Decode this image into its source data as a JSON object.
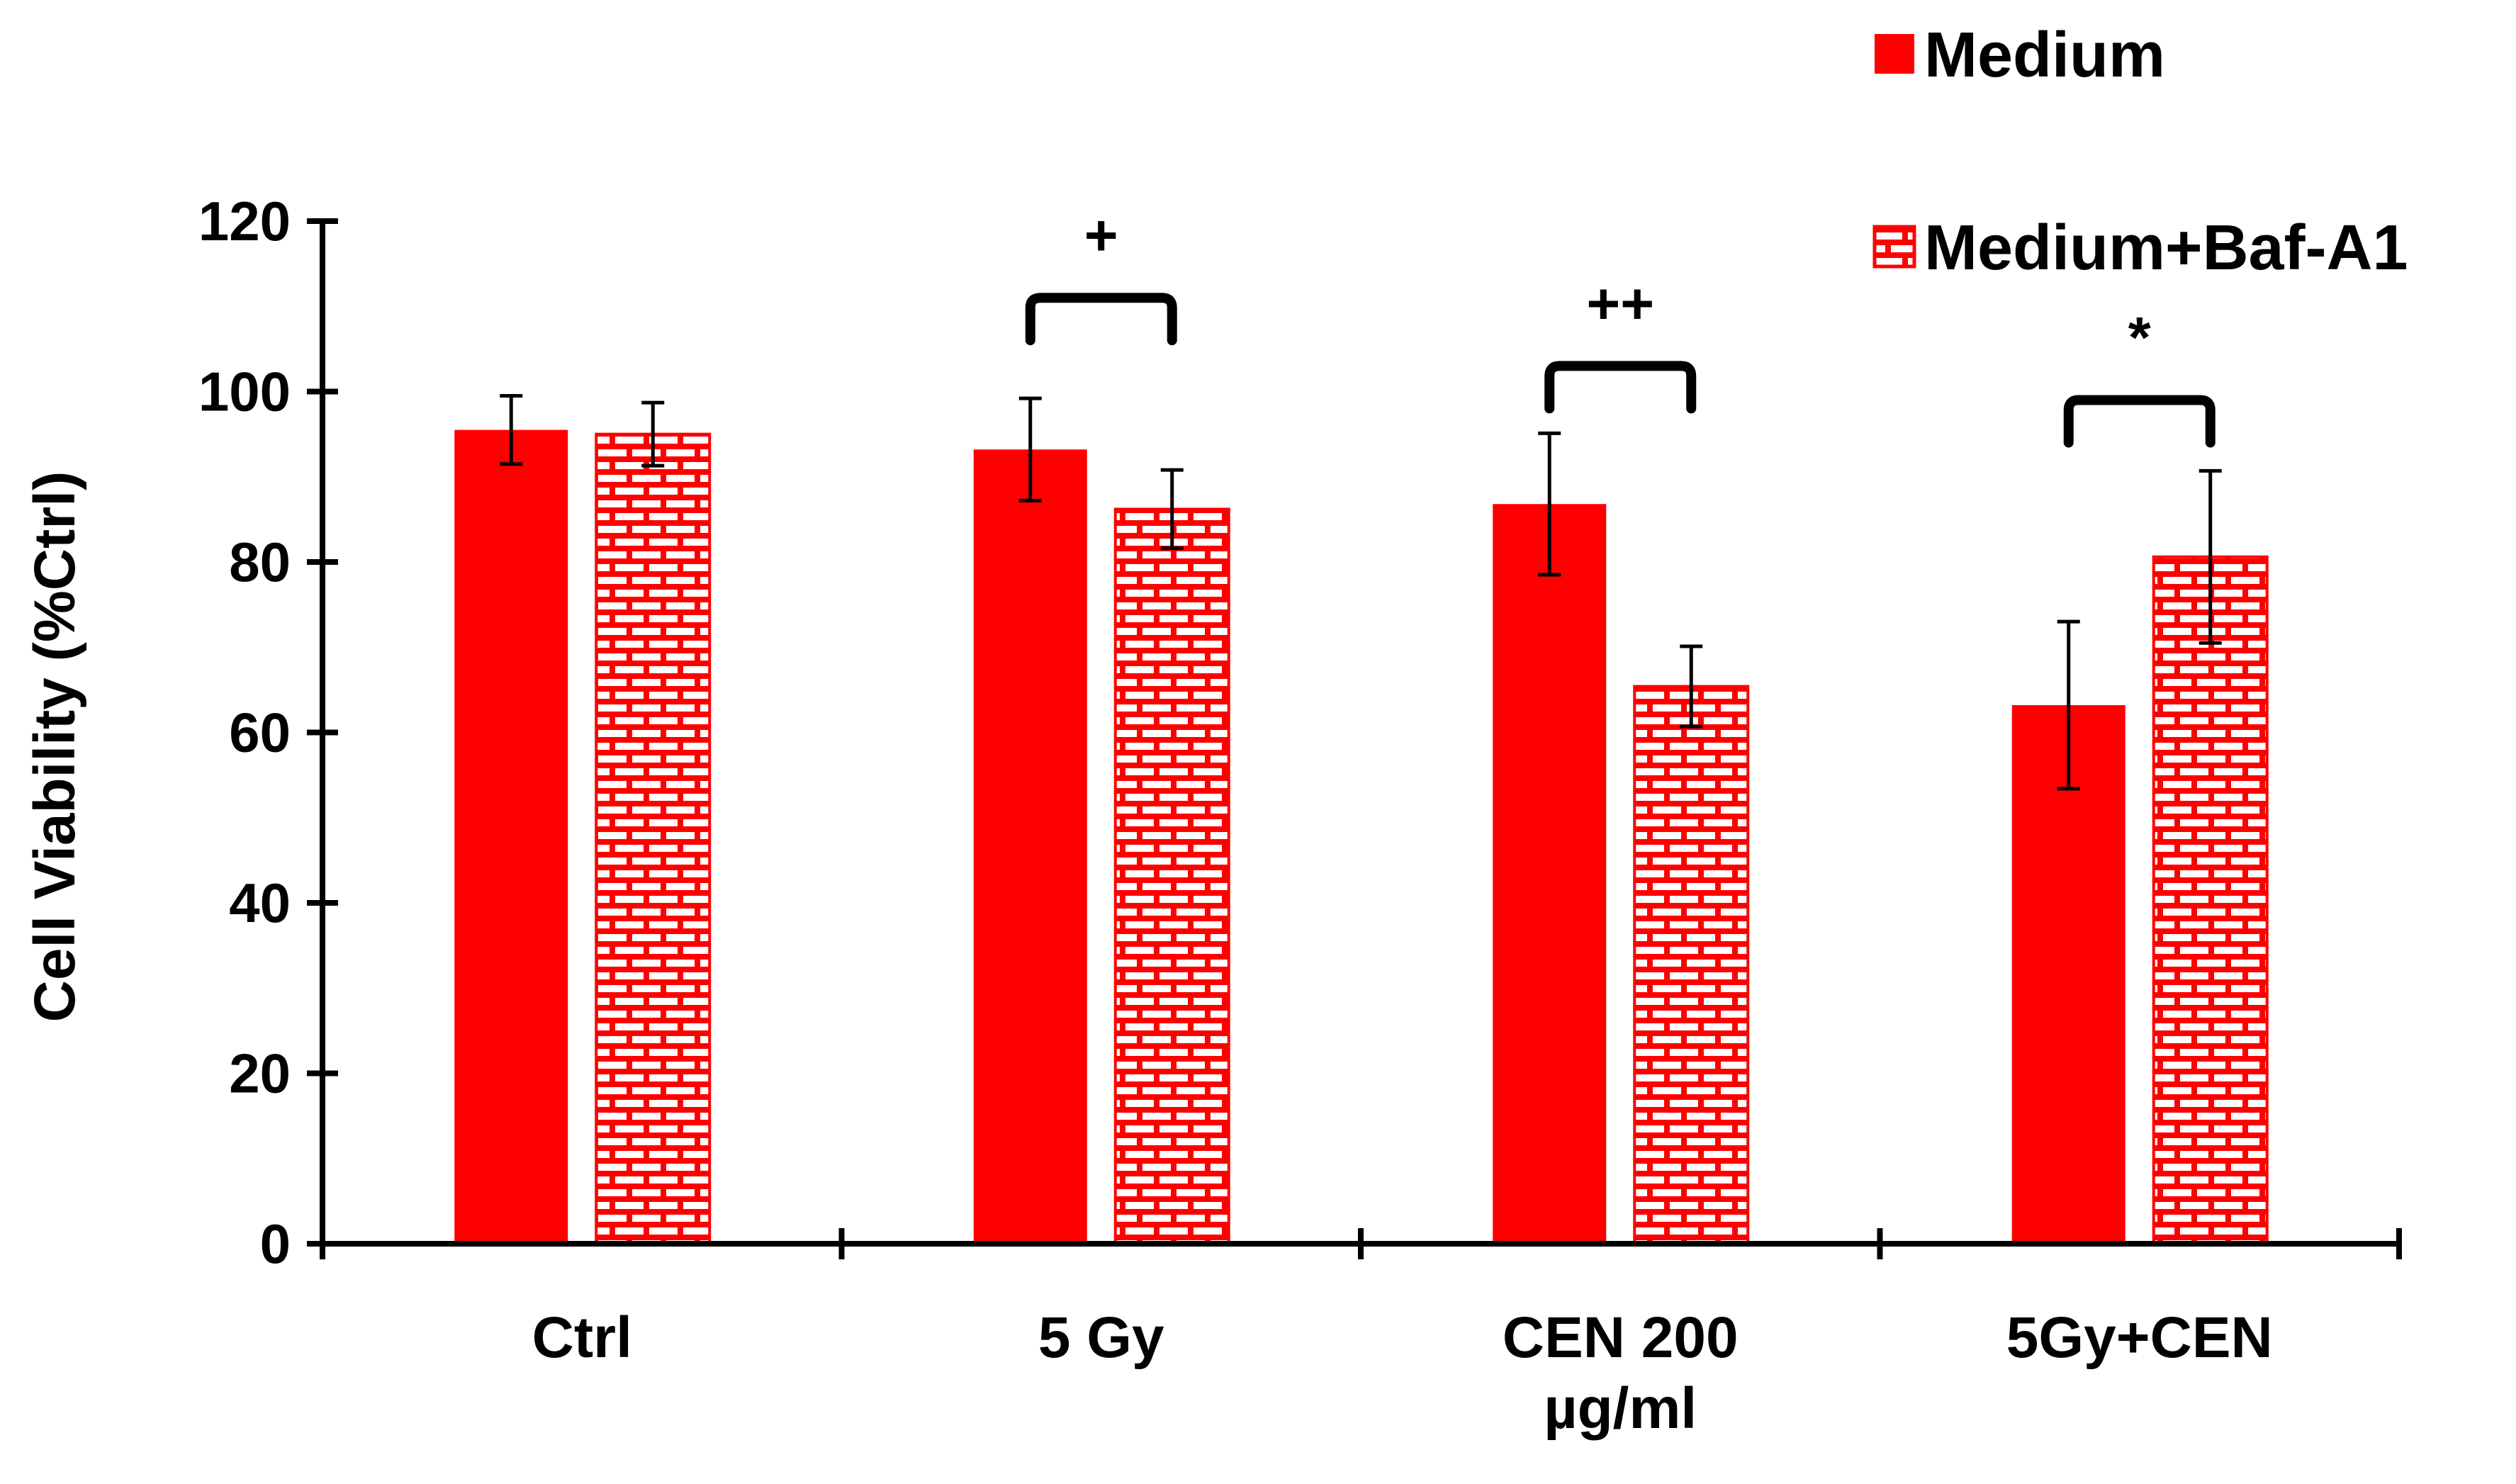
{
  "chart_data": {
    "type": "bar",
    "title": "",
    "xlabel": "",
    "ylabel": "Cell Viability (%Ctrl)",
    "ylim": [
      0,
      120
    ],
    "y_ticks": [
      "0",
      "20",
      "40",
      "60",
      "80",
      "100",
      "120"
    ],
    "grid": false,
    "legend_position": "top-right",
    "categories": [
      {
        "lines": [
          "Ctrl"
        ]
      },
      {
        "lines": [
          "5 Gy"
        ]
      },
      {
        "lines": [
          "CEN 200",
          "µg/ml"
        ]
      },
      {
        "lines": [
          "5Gy+CEN"
        ]
      }
    ],
    "series": [
      {
        "name": "Medium",
        "fill": "solid",
        "values": [
          95.5,
          93.2,
          86.8,
          63.2
        ],
        "errors": [
          4.0,
          6.0,
          8.3,
          9.8
        ]
      },
      {
        "name": "Medium+Baf-A1",
        "fill": "brick",
        "values": [
          95.0,
          86.2,
          65.4,
          80.6
        ],
        "errors": [
          3.7,
          4.6,
          4.7,
          10.1
        ]
      }
    ],
    "significance": [
      {
        "category_index": 1,
        "label": "+",
        "y_level": 111
      },
      {
        "category_index": 2,
        "label": "++",
        "y_level": 103
      },
      {
        "category_index": 3,
        "label": "*",
        "y_level": 99
      }
    ]
  },
  "colors": {
    "bar": "#ff0000",
    "brick_mortar": "#ffffff",
    "axis": "#000000",
    "text": "#000000"
  }
}
